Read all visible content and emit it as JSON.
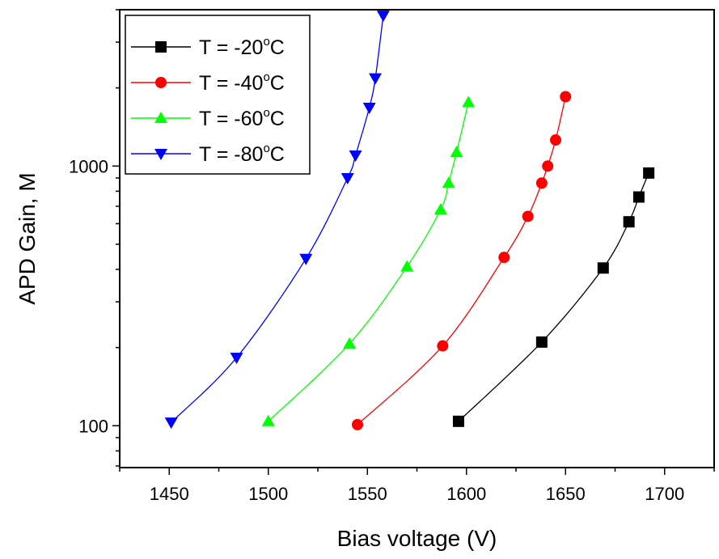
{
  "chart_data": {
    "type": "line",
    "xlabel": "Bias voltage (V)",
    "ylabel": "APD Gain, M",
    "xlim": [
      1425,
      1725
    ],
    "ylim": [
      69,
      4000
    ],
    "yscale": "log",
    "grid": false,
    "legend_position": "top-left",
    "x_major_ticks": [
      1450,
      1500,
      1550,
      1600,
      1650,
      1700
    ],
    "x_tick_labels": [
      "1450",
      "1500",
      "1550",
      "1600",
      "1650",
      "1700"
    ],
    "y_labeled_ticks": [
      100,
      1000
    ],
    "y_tick_labels": [
      "100",
      "1000"
    ],
    "series": [
      {
        "name_prefix": "T = -20",
        "name_sup": "o",
        "name_suffix": "C",
        "color": "#000000",
        "marker": "square",
        "x": [
          1596,
          1638,
          1669,
          1682,
          1687,
          1692
        ],
        "y": [
          104,
          210,
          405,
          610,
          760,
          940
        ]
      },
      {
        "name_prefix": "T = -40",
        "name_sup": "o",
        "name_suffix": "C",
        "color": "#ff0000",
        "marker": "circle",
        "x": [
          1545,
          1588,
          1619,
          1631,
          1638,
          1641,
          1645,
          1650
        ],
        "y": [
          101,
          203,
          445,
          640,
          860,
          1000,
          1260,
          1850
        ]
      },
      {
        "name_prefix": "T = -60",
        "name_sup": "o",
        "name_suffix": "C",
        "color": "#00ff00",
        "marker": "triangle-up",
        "x": [
          1500,
          1541,
          1570,
          1587,
          1591,
          1595,
          1601
        ],
        "y": [
          104,
          207,
          410,
          680,
          860,
          1130,
          1760
        ]
      },
      {
        "name_prefix": "T = -80",
        "name_sup": "o",
        "name_suffix": "C",
        "color": "#0000ff",
        "marker": "triangle-down",
        "x": [
          1451,
          1484,
          1519,
          1540,
          1544,
          1551,
          1554,
          1558
        ],
        "y": [
          103,
          183,
          440,
          900,
          1100,
          1680,
          2180,
          3800
        ]
      }
    ]
  }
}
